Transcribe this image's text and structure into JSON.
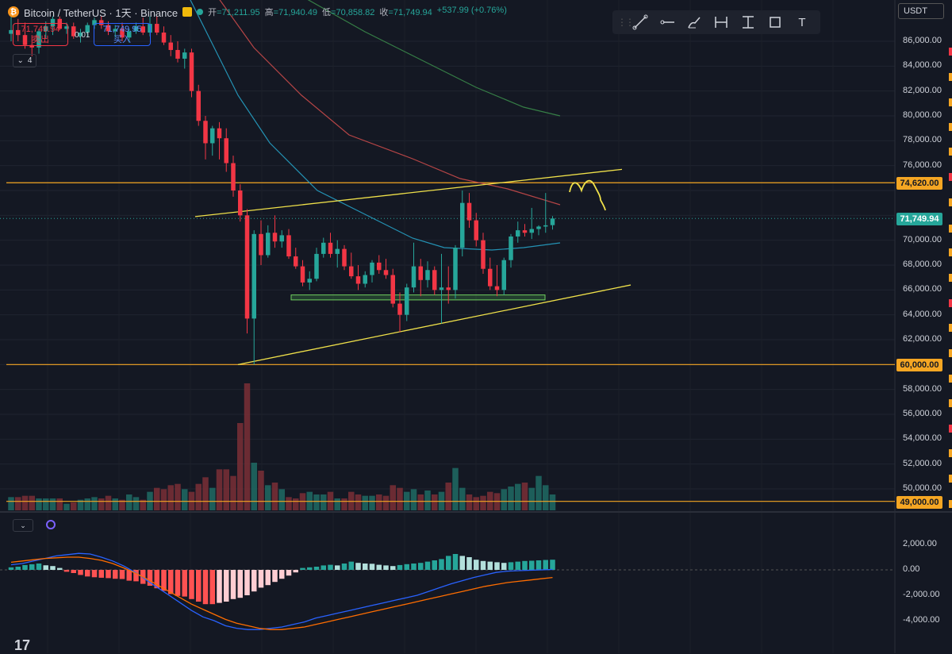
{
  "header": {
    "pair": "Bitcoin / TetherUS · 1天 · Binance",
    "open_label": "开",
    "open": "=71,211.95",
    "high_label": "高",
    "high": "=71,940.49",
    "low_label": "低",
    "low": "=70,858.82",
    "close_label": "收",
    "close": "=71,749.94",
    "change": "+537.99 (+0.76%)"
  },
  "trade": {
    "sell_price": "71,749.94",
    "sell_label": "卖出",
    "spread": "0.01",
    "buy_price": "71,749.95",
    "buy_label": "买入"
  },
  "collapse_count": "4",
  "unit_select": "USDT",
  "toolbar": {
    "tools": [
      "trend-line-icon",
      "horizontal-ray-icon",
      "brush-icon",
      "date-range-icon",
      "price-range-icon",
      "rectangle-icon",
      "text-icon"
    ],
    "text_tool_label": "T"
  },
  "price_axis": {
    "labels": [
      "86,000.00",
      "84,000.00",
      "82,000.00",
      "80,000.00",
      "78,000.00",
      "76,000.00",
      "70,000.00",
      "68,000.00",
      "66,000.00",
      "64,000.00",
      "62,000.00",
      "58,000.00",
      "56,000.00",
      "54,000.00",
      "52,000.00",
      "50,000.00"
    ],
    "tags": {
      "resistance": "74,620.00",
      "current": "71,749.94",
      "support": "60,000.00",
      "bottom": "49,000.00"
    }
  },
  "macd_axis": {
    "labels": [
      "2,000.00",
      "0.00",
      "-2,000.00",
      "-4,000.00"
    ]
  },
  "colors": {
    "up": "#26a69a",
    "down": "#f23645",
    "orange": "#f5a623",
    "yellow": "#f0e14a",
    "bg": "#141823"
  },
  "chart_data": {
    "type": "candlestick",
    "symbol": "Bitcoin / TetherUS",
    "interval": "1天",
    "exchange": "Binance",
    "ylim": [
      49000,
      88000
    ],
    "horizontal_lines": [
      74620,
      60000,
      49000
    ],
    "candles": [
      [
        86600,
        88000,
        86000,
        86900
      ],
      [
        86900,
        87800,
        86000,
        86500
      ],
      [
        86500,
        87500,
        85400,
        85700
      ],
      [
        85700,
        86500,
        84800,
        85500
      ],
      [
        85500,
        87000,
        85000,
        86800
      ],
      [
        86800,
        87600,
        86200,
        87200
      ],
      [
        87200,
        88000,
        86500,
        87800
      ],
      [
        87800,
        88000,
        86900,
        87000
      ],
      [
        87000,
        87500,
        86600,
        87200
      ],
      [
        87200,
        87500,
        86200,
        86400
      ],
      [
        86400,
        87000,
        85900,
        86700
      ],
      [
        86700,
        87500,
        86300,
        87300
      ],
      [
        87300,
        87900,
        87000,
        87700
      ],
      [
        87700,
        88000,
        87000,
        87300
      ],
      [
        87300,
        87600,
        86500,
        86800
      ],
      [
        86800,
        87300,
        86300,
        87000
      ],
      [
        87000,
        87500,
        86000,
        86300
      ],
      [
        86300,
        87000,
        85900,
        86800
      ],
      [
        86800,
        87500,
        86600,
        87200
      ],
      [
        87200,
        87900,
        86500,
        86700
      ],
      [
        86700,
        88000,
        86400,
        87400
      ],
      [
        87400,
        88000,
        86500,
        86700
      ],
      [
        86700,
        87200,
        85700,
        85900
      ],
      [
        85900,
        86500,
        84800,
        85300
      ],
      [
        85300,
        86000,
        84300,
        84600
      ],
      [
        84600,
        85400,
        83800,
        85100
      ],
      [
        85100,
        85400,
        81500,
        82000
      ],
      [
        82000,
        82500,
        79200,
        79600
      ],
      [
        79600,
        80000,
        76500,
        77800
      ],
      [
        77800,
        79200,
        76800,
        79000
      ],
      [
        79000,
        79500,
        76500,
        78200
      ],
      [
        78200,
        79000,
        75500,
        76200
      ],
      [
        76200,
        76800,
        73500,
        74000
      ],
      [
        74000,
        74500,
        71500,
        72000
      ],
      [
        72000,
        72500,
        62500,
        63700
      ],
      [
        63700,
        70800,
        60000,
        70500
      ],
      [
        70500,
        71600,
        68000,
        68800
      ],
      [
        68800,
        71200,
        68600,
        70600
      ],
      [
        70600,
        72000,
        69400,
        69900
      ],
      [
        69900,
        70800,
        69400,
        70400
      ],
      [
        70400,
        70900,
        68500,
        68700
      ],
      [
        68700,
        69400,
        67700,
        67900
      ],
      [
        67900,
        68400,
        66300,
        66600
      ],
      [
        66600,
        67500,
        66000,
        66900
      ],
      [
        66900,
        69400,
        66700,
        68900
      ],
      [
        68900,
        70200,
        68600,
        69800
      ],
      [
        69800,
        70600,
        68600,
        68900
      ],
      [
        68900,
        70000,
        67800,
        69300
      ],
      [
        69300,
        69600,
        67600,
        67900
      ],
      [
        67900,
        69000,
        66900,
        67100
      ],
      [
        67100,
        68000,
        66000,
        66500
      ],
      [
        66500,
        67500,
        66200,
        67200
      ],
      [
        67200,
        68400,
        66600,
        68200
      ],
      [
        68200,
        68800,
        67300,
        67600
      ],
      [
        67600,
        68500,
        66900,
        67200
      ],
      [
        67200,
        67700,
        64600,
        64900
      ],
      [
        64900,
        65800,
        62600,
        64000
      ],
      [
        64000,
        66500,
        63500,
        66200
      ],
      [
        66200,
        69800,
        65800,
        67900
      ],
      [
        67900,
        68500,
        65500,
        66800
      ],
      [
        66800,
        68300,
        66200,
        67600
      ],
      [
        67600,
        67900,
        65600,
        66000
      ],
      [
        66000,
        68900,
        63300,
        66200
      ],
      [
        66200,
        67900,
        64900,
        66000
      ],
      [
        66000,
        69600,
        65300,
        69400
      ],
      [
        69400,
        74000,
        68700,
        73000
      ],
      [
        73000,
        73800,
        71000,
        71600
      ],
      [
        71600,
        72200,
        69500,
        70000
      ],
      [
        70000,
        70600,
        67300,
        67700
      ],
      [
        67700,
        68600,
        66000,
        66300
      ],
      [
        66300,
        68000,
        65500,
        66000
      ],
      [
        66000,
        68600,
        65600,
        68400
      ],
      [
        68400,
        70500,
        67800,
        70300
      ],
      [
        70300,
        71500,
        69800,
        70800
      ],
      [
        70800,
        71300,
        70300,
        70600
      ],
      [
        70600,
        72600,
        70100,
        70900
      ],
      [
        70900,
        71200,
        70400,
        71100
      ],
      [
        71100,
        73800,
        70600,
        71200
      ],
      [
        71211.95,
        71940.49,
        70858.82,
        71749.94
      ]
    ],
    "volume": [
      10,
      10,
      11,
      11,
      9,
      9,
      9,
      9,
      5,
      6,
      8,
      9,
      10,
      9,
      11,
      9,
      8,
      12,
      10,
      8,
      14,
      17,
      16,
      19,
      20,
      16,
      14,
      20,
      25,
      17,
      31,
      31,
      26,
      66,
      96,
      36,
      30,
      19,
      21,
      16,
      10,
      9,
      13,
      14,
      12,
      12,
      14,
      9,
      9,
      14,
      12,
      11,
      11,
      12,
      11,
      19,
      17,
      14,
      16,
      12,
      15,
      12,
      14,
      21,
      32,
      17,
      12,
      10,
      11,
      14,
      13,
      16,
      18,
      20,
      21,
      17,
      26,
      19,
      12
    ],
    "ma_lines": [
      {
        "color": "#26a0c4",
        "from": 72500,
        "to": 69500
      },
      {
        "color": "#c94a4a",
        "from": 80000,
        "to": 73200
      },
      {
        "color": "#3a8a4a",
        "from": 88000,
        "to": 80000
      }
    ],
    "trendlines": [
      {
        "from": 71900,
        "to": 75700
      },
      {
        "from": 60000,
        "to": 66400
      }
    ],
    "support_zone": [
      65200,
      65600
    ],
    "macd": {
      "ylim": [
        -4000,
        2800
      ],
      "histogram": [
        200,
        250,
        380,
        440,
        500,
        360,
        300,
        150,
        -150,
        -250,
        -400,
        -520,
        -580,
        -620,
        -650,
        -700,
        -720,
        -850,
        -900,
        -1100,
        -1250,
        -1450,
        -1650,
        -1900,
        -2050,
        -2100,
        -2300,
        -2500,
        -2700,
        -2700,
        -2600,
        -2500,
        -2300,
        -2200,
        -2000,
        -1700,
        -1400,
        -1200,
        -950,
        -700,
        -450,
        -200,
        150,
        200,
        250,
        350,
        400,
        350,
        500,
        650,
        550,
        500,
        480,
        400,
        350,
        300,
        380,
        450,
        500,
        550,
        650,
        750,
        850,
        1100,
        1250,
        1100,
        1000,
        800,
        700,
        650,
        600,
        550,
        600,
        650,
        700,
        720,
        750,
        780,
        800
      ],
      "macd_line": [
        400,
        500,
        700,
        900,
        1100,
        1200,
        1300,
        1250,
        1000,
        700,
        300,
        -200,
        -800,
        -1400,
        -2000,
        -2600,
        -3200,
        -3700,
        -4000,
        -4400,
        -4600,
        -4700,
        -4700,
        -4600,
        -4500,
        -4300,
        -4100,
        -3800,
        -3600,
        -3400,
        -3200,
        -3000,
        -2800,
        -2600,
        -2400,
        -2200,
        -2000,
        -1700,
        -1400,
        -1100,
        -850,
        -600,
        -400,
        -200,
        -100,
        -60,
        -30,
        0,
        30
      ],
      "signal_line": [
        600,
        700,
        800,
        900,
        950,
        1000,
        1000,
        900,
        750,
        500,
        150,
        -250,
        -700,
        -1200,
        -1700,
        -2200,
        -2700,
        -3100,
        -3500,
        -3900,
        -4200,
        -4400,
        -4600,
        -4700,
        -4700,
        -4600,
        -4500,
        -4300,
        -4100,
        -3900,
        -3700,
        -3500,
        -3300,
        -3100,
        -2900,
        -2700,
        -2500,
        -2300,
        -2100,
        -1900,
        -1700,
        -1500,
        -1300,
        -1150,
        -1000,
        -900,
        -800,
        -700,
        -600
      ]
    }
  }
}
